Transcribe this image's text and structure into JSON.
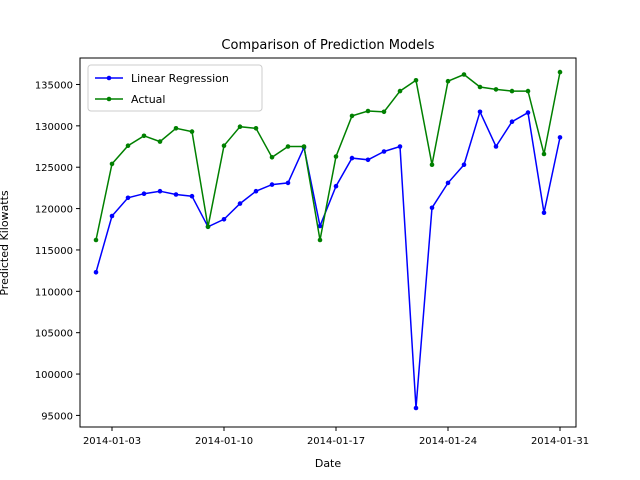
{
  "chart_data": {
    "type": "line",
    "title": "Comparison of Prediction Models",
    "xlabel": "Date",
    "ylabel": "Predicted Kilowatts",
    "x": [
      "2014-01-02",
      "2014-01-03",
      "2014-01-04",
      "2014-01-05",
      "2014-01-06",
      "2014-01-07",
      "2014-01-08",
      "2014-01-09",
      "2014-01-10",
      "2014-01-11",
      "2014-01-12",
      "2014-01-13",
      "2014-01-14",
      "2014-01-15",
      "2014-01-16",
      "2014-01-17",
      "2014-01-18",
      "2014-01-19",
      "2014-01-20",
      "2014-01-21",
      "2014-01-22",
      "2014-01-23",
      "2014-01-24",
      "2014-01-25",
      "2014-01-26",
      "2014-01-27",
      "2014-01-28",
      "2014-01-29",
      "2014-01-30",
      "2014-01-31"
    ],
    "xticks": [
      "2014-01-03",
      "2014-01-10",
      "2014-01-17",
      "2014-01-24",
      "2014-01-31"
    ],
    "xlim": [
      "2014-01-01",
      "2014-01-32"
    ],
    "yticks": [
      95000,
      100000,
      105000,
      110000,
      115000,
      120000,
      125000,
      130000,
      135000
    ],
    "ylim": [
      93600,
      138200
    ],
    "series": [
      {
        "name": "Linear Regression",
        "color": "#0000ff",
        "values": [
          112300,
          119100,
          121300,
          121800,
          122100,
          121700,
          121500,
          117800,
          118700,
          120600,
          122100,
          122900,
          123100,
          127400,
          117900,
          122700,
          126100,
          125900,
          126900,
          127500,
          95900,
          120100,
          123100,
          125300,
          131700,
          127500,
          130500,
          131600,
          119500,
          128600
        ]
      },
      {
        "name": "Actual",
        "color": "#008000",
        "values": [
          116200,
          125400,
          127600,
          128800,
          128100,
          129700,
          129300,
          117800,
          127600,
          129900,
          129700,
          126200,
          127500,
          127500,
          116200,
          126300,
          131200,
          131800,
          131700,
          134200,
          135500,
          125300,
          135400,
          136200,
          134700,
          134400,
          134200,
          134200,
          126600,
          136500
        ]
      }
    ],
    "legend": "top-left",
    "grid": false,
    "marker": "dot"
  }
}
